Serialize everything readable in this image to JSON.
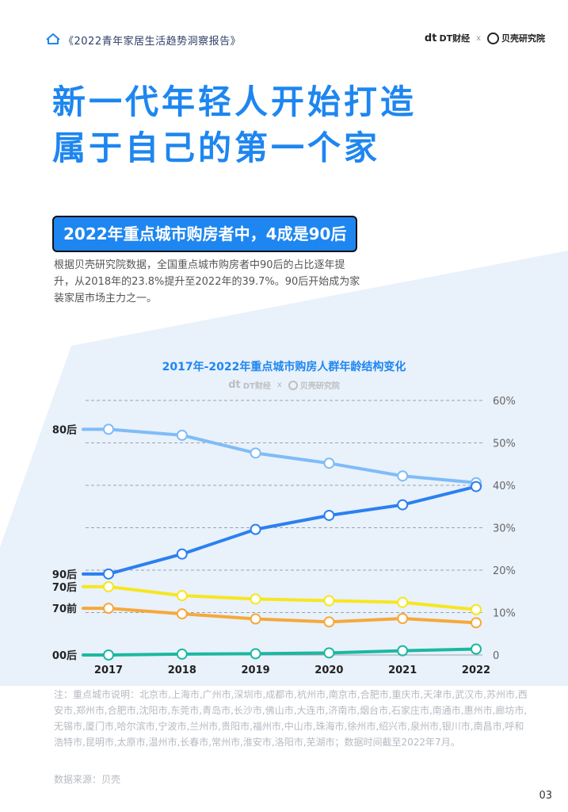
{
  "header": {
    "report_title": "《2022青年家居生活趋势洞察报告》",
    "logo_dt": "DT财经",
    "logo_sep": "x",
    "logo_bk": "贝壳研究院"
  },
  "title": {
    "line1": "新一代年轻人开始打造",
    "line2": "属于自己的第一个家"
  },
  "subtitle": "2022年重点城市购房者中，4成是90后",
  "description": "根据贝壳研究院数据，全国重点城市购房者中90后的占比逐年提升，从2018年的23.8%提升至2022年的39.7%。90后开始成为家装家居市场主力之一。",
  "chart_watermark": {
    "dt": "DT财经",
    "sep": "x",
    "bk": "贝壳研究院"
  },
  "chart_data": {
    "type": "line",
    "title": "2017年-2022年重点城市购房人群年龄结构变化",
    "categories": [
      "2017",
      "2018",
      "2019",
      "2020",
      "2021",
      "2022"
    ],
    "ylim": [
      0,
      60
    ],
    "yticks": [
      0,
      10,
      20,
      30,
      40,
      50,
      60
    ],
    "ytick_labels": [
      "0",
      "10%",
      "20%",
      "30%",
      "40%",
      "50%",
      "60%"
    ],
    "grid": true,
    "series": [
      {
        "name": "80后",
        "color": "#7fbcf7",
        "values": [
          53.2,
          51.8,
          47.6,
          45.2,
          42.2,
          40.6
        ]
      },
      {
        "name": "90后",
        "color": "#2b80ef",
        "values": [
          19.1,
          23.8,
          29.6,
          32.9,
          35.4,
          39.7
        ]
      },
      {
        "name": "70后",
        "color": "#f7e61f",
        "values": [
          16.1,
          14.0,
          13.2,
          12.8,
          12.4,
          10.7
        ]
      },
      {
        "name": "70前",
        "color": "#f5a93b",
        "values": [
          11.0,
          9.7,
          8.5,
          7.8,
          8.6,
          7.6
        ]
      },
      {
        "name": "00后",
        "color": "#1cb8a1",
        "values": [
          0.0,
          0.2,
          0.3,
          0.5,
          1.0,
          1.4
        ]
      }
    ]
  },
  "note": "注：重点城市说明：北京市,上海市,广州市,深圳市,成都市,杭州市,南京市,合肥市,重庆市,天津市,武汉市,苏州市,西安市,郑州市,合肥市,沈阳市,东莞市,青岛市,长沙市,佛山市,大连市,济南市,烟台市,石家庄市,南通市,惠州市,廊坊市,无锡市,厦门市,哈尔滨市,宁波市,兰州市,贵阳市,福州市,中山市,珠海市,徐州市,绍兴市,泉州市,银川市,南昌市,呼和浩特市,昆明市,太原市,温州市,长春市,常州市,淮安市,洛阳市,芜湖市；数据时间截至2022年7月。",
  "source": "数据来源：贝壳",
  "page_number": "03"
}
